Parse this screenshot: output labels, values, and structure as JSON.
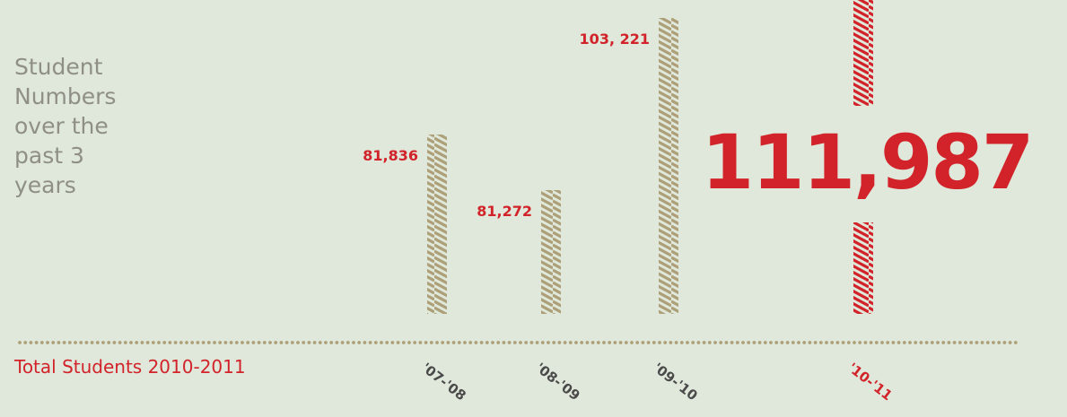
{
  "side_title": "Student Numbers over the past 3 years",
  "footer_label": "Total Students 2010-2011",
  "colors": {
    "background": "#dfe8da",
    "bar": "#ad9f78",
    "highlight": "#d2232a",
    "muted_text": "#8f8f86",
    "dots": "#ad9f78"
  },
  "chart_data": {
    "type": "bar",
    "categories": [
      "'07-'08",
      "'08-'09",
      "'09-'10",
      "'10-'11"
    ],
    "values": [
      81836,
      81272,
      103221,
      111987
    ],
    "value_labels": [
      "81,836",
      "81,272",
      "103, 221",
      "111,987"
    ],
    "highlight_index": 3,
    "title": "",
    "xlabel": "",
    "ylabel": "",
    "grid": false,
    "legend": "none"
  }
}
